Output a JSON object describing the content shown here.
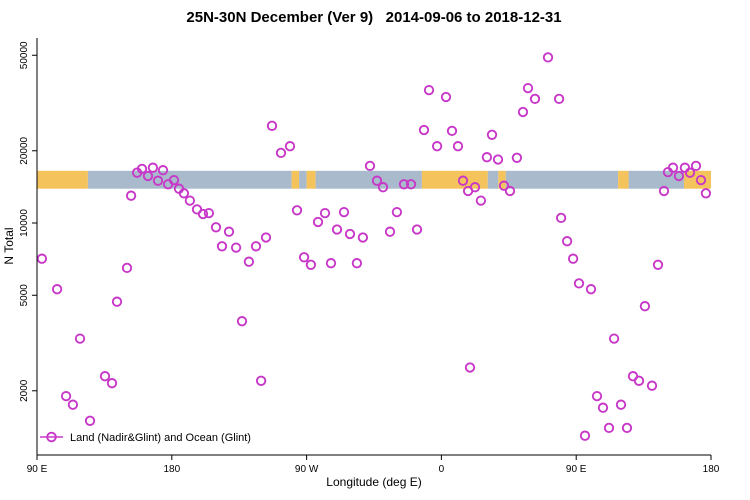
{
  "chart_data": {
    "type": "scatter",
    "title": "25N-30N December (Ver 9)   2014-09-06 to 2018-12-31",
    "xlabel": "Longitude (deg E)",
    "ylabel": "N Total",
    "grid": false,
    "x_axis": {
      "note": "wrapped longitude axis reading 90E -> 180 -> 90W -> 0 -> 90E -> 180; positions are degrees east of the left edge (left edge = 90E)",
      "range": [
        0,
        450
      ],
      "ticks": [
        {
          "pos": 0,
          "label": "90 E"
        },
        {
          "pos": 90,
          "label": "180"
        },
        {
          "pos": 180,
          "label": "90 W"
        },
        {
          "pos": 270,
          "label": "0"
        },
        {
          "pos": 360,
          "label": "90 E"
        },
        {
          "pos": 450,
          "label": "180"
        }
      ]
    },
    "y_axis": {
      "scale": "log",
      "range": [
        1080,
        59000
      ],
      "ticks": [
        2000,
        5000,
        10000,
        20000,
        50000
      ]
    },
    "colors": {
      "point": "#C838C8",
      "land": "#F5C35C",
      "ocean": "#A9BACD"
    },
    "legend": {
      "label": "Land (Nadir&Glint) and Ocean (Glint)",
      "marker": "open-circle-with-line"
    },
    "surface_band": {
      "note": "horizontal strip across plot showing land (orange) vs ocean (blue-gray) along longitude",
      "n_range": [
        13900,
        16500
      ],
      "segments": [
        {
          "from": 0,
          "to": 34,
          "surface": "land"
        },
        {
          "from": 34,
          "to": 170,
          "surface": "ocean"
        },
        {
          "from": 170,
          "to": 175,
          "surface": "land"
        },
        {
          "from": 175,
          "to": 180,
          "surface": "ocean"
        },
        {
          "from": 180,
          "to": 186,
          "surface": "land"
        },
        {
          "from": 186,
          "to": 257,
          "surface": "ocean"
        },
        {
          "from": 257,
          "to": 301,
          "surface": "land"
        },
        {
          "from": 301,
          "to": 308,
          "surface": "ocean"
        },
        {
          "from": 308,
          "to": 313,
          "surface": "land"
        },
        {
          "from": 313,
          "to": 388,
          "surface": "ocean"
        },
        {
          "from": 388,
          "to": 395,
          "surface": "land"
        },
        {
          "from": 395,
          "to": 432,
          "surface": "ocean"
        },
        {
          "from": 432,
          "to": 450,
          "surface": "land"
        }
      ]
    },
    "points": [
      [
        3.3,
        7100
      ],
      [
        13.4,
        5300
      ],
      [
        19.4,
        1900
      ],
      [
        24.0,
        1750
      ],
      [
        28.7,
        3300
      ],
      [
        35.4,
        1500
      ],
      [
        45.4,
        2300
      ],
      [
        50.1,
        2150
      ],
      [
        53.4,
        4700
      ],
      [
        60.1,
        6500
      ],
      [
        62.8,
        13000
      ],
      [
        66.8,
        16200
      ],
      [
        70.1,
        16800
      ],
      [
        74.1,
        15700
      ],
      [
        77.4,
        17000
      ],
      [
        80.8,
        15000
      ],
      [
        84.1,
        16600
      ],
      [
        87.5,
        14500
      ],
      [
        91.5,
        15100
      ],
      [
        94.8,
        13900
      ],
      [
        98.1,
        13300
      ],
      [
        102.1,
        12400
      ],
      [
        106.8,
        11400
      ],
      [
        110.8,
        10900
      ],
      [
        114.8,
        11000
      ],
      [
        119.5,
        9600
      ],
      [
        123.5,
        8000
      ],
      [
        128.2,
        9200
      ],
      [
        132.9,
        7900
      ],
      [
        136.9,
        3900
      ],
      [
        141.5,
        6900
      ],
      [
        146.2,
        8000
      ],
      [
        149.6,
        2200
      ],
      [
        152.9,
        8700
      ],
      [
        156.9,
        25400
      ],
      [
        162.9,
        19600
      ],
      [
        168.9,
        20900
      ],
      [
        173.6,
        11300
      ],
      [
        178.3,
        7200
      ],
      [
        182.9,
        6700
      ],
      [
        187.6,
        10100
      ],
      [
        192.3,
        11000
      ],
      [
        196.3,
        6800
      ],
      [
        200.3,
        9400
      ],
      [
        205.0,
        11100
      ],
      [
        209.0,
        9000
      ],
      [
        213.6,
        6800
      ],
      [
        217.6,
        8700
      ],
      [
        222.3,
        17300
      ],
      [
        227.0,
        15000
      ],
      [
        231.0,
        14100
      ],
      [
        235.7,
        9200
      ],
      [
        240.3,
        11100
      ],
      [
        245.0,
        14500
      ],
      [
        249.7,
        14500
      ],
      [
        253.7,
        9400
      ],
      [
        258.4,
        24400
      ],
      [
        261.7,
        35800
      ],
      [
        267.1,
        20900
      ],
      [
        273.1,
        33500
      ],
      [
        277.1,
        24200
      ],
      [
        281.1,
        20900
      ],
      [
        284.4,
        15000
      ],
      [
        287.8,
        13600
      ],
      [
        289.1,
        2500
      ],
      [
        292.4,
        14100
      ],
      [
        296.4,
        12400
      ],
      [
        300.4,
        18800
      ],
      [
        303.8,
        23300
      ],
      [
        307.8,
        18400
      ],
      [
        311.8,
        14300
      ],
      [
        315.8,
        13600
      ],
      [
        320.4,
        18700
      ],
      [
        324.5,
        29000
      ],
      [
        327.8,
        36500
      ],
      [
        332.5,
        32900
      ],
      [
        341.2,
        49000
      ],
      [
        348.6,
        32900
      ],
      [
        349.9,
        10500
      ],
      [
        353.9,
        8400
      ],
      [
        357.9,
        7100
      ],
      [
        361.9,
        5600
      ],
      [
        365.9,
        1300
      ],
      [
        369.9,
        5300
      ],
      [
        373.9,
        1900
      ],
      [
        377.9,
        1700
      ],
      [
        381.9,
        1400
      ],
      [
        385.3,
        3300
      ],
      [
        389.9,
        1750
      ],
      [
        393.9,
        1400
      ],
      [
        397.9,
        2300
      ],
      [
        401.9,
        2200
      ],
      [
        405.9,
        4500
      ],
      [
        410.6,
        2100
      ],
      [
        414.6,
        6700
      ],
      [
        418.6,
        13600
      ],
      [
        421.3,
        16300
      ],
      [
        424.6,
        17000
      ],
      [
        428.6,
        15700
      ],
      [
        432.6,
        17000
      ],
      [
        436.0,
        16200
      ],
      [
        440.0,
        17300
      ],
      [
        443.3,
        15100
      ],
      [
        446.6,
        13300
      ]
    ]
  }
}
